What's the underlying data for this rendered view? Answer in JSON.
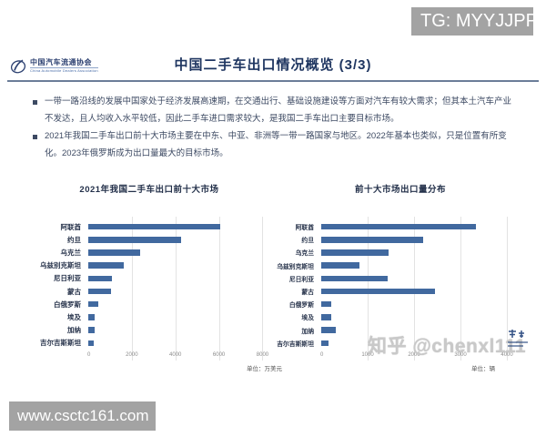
{
  "overlays": {
    "tg_badge": "TG: MYYJJPP",
    "site_badge": "www.csctc161.com",
    "watermark": "知乎 @chenxl111"
  },
  "header": {
    "logo_text": "中国汽车流通协会",
    "logo_subtext": "China Automobile Dealers Association",
    "title": "中国二手车出口情况概览 (3/3)"
  },
  "bullets": [
    "一带一路沿线的发展中国家处于经济发展高速期，在交通出行、基础设施建设等方面对汽车有较大需求；但其本土汽车产业不发达，且人均收入水平较低，因此二手车进口需求较大，是我国二手车出口主要目标市场。",
    "2021年我国二手车出口前十大市场主要在中东、中亚、非洲等一带一路国家与地区。2022年基本也类似，只是位置有所变化。2023年俄罗斯成为出口量最大的目标市场。"
  ],
  "colors": {
    "title_navy": "#1e3560",
    "badge_gray": "#a3a3a3",
    "bar_blue": "#41699f"
  },
  "chart_data": [
    {
      "type": "bar",
      "orientation": "horizontal",
      "title": "2021年我国二手车出口前十大市场",
      "categories": [
        "阿联酋",
        "约旦",
        "乌克兰",
        "乌兹别克斯坦",
        "尼日利亚",
        "蒙古",
        "白俄罗斯",
        "埃及",
        "加纳",
        "吉尔吉斯斯坦"
      ],
      "values": [
        6050,
        4250,
        2400,
        1650,
        1100,
        1050,
        450,
        300,
        300,
        250
      ],
      "unit_label": "单位：万美元",
      "xticks": [
        0,
        2000,
        4000,
        6000,
        8000
      ],
      "xlim": [
        0,
        8900
      ],
      "bar_color": "#41699f",
      "grid": true,
      "legend": false
    },
    {
      "type": "bar",
      "orientation": "horizontal",
      "title": "前十大市场出口量分布",
      "categories": [
        "阿联酋",
        "约旦",
        "乌克兰",
        "乌兹别克斯坦",
        "尼日利亚",
        "蒙古",
        "白俄罗斯",
        "埃及",
        "加纳",
        "吉尔吉斯斯坦"
      ],
      "values": [
        3330,
        2200,
        1450,
        830,
        1430,
        2450,
        220,
        220,
        310,
        160
      ],
      "unit_label": "单位：辆",
      "xticks": [
        0,
        1000,
        2000,
        3000,
        4000
      ],
      "xlim": [
        0,
        4450
      ],
      "bar_color": "#41699f",
      "grid": true,
      "legend": false
    }
  ]
}
